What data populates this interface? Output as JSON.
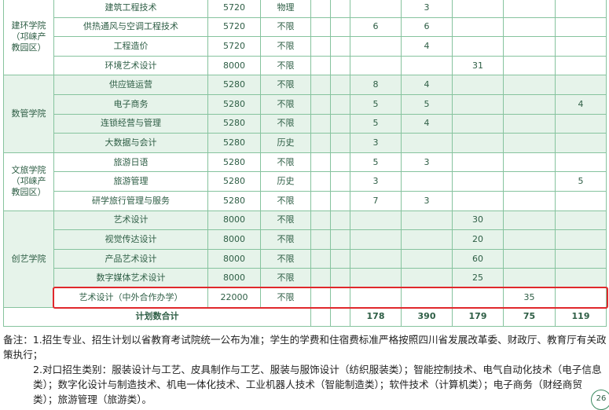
{
  "table": {
    "groups": [
      {
        "college": [
          "建环学院",
          "（邛崃产",
          "教园区）"
        ],
        "rows": [
          {
            "major": "建筑工程技术",
            "fee": 5720,
            "subject": "物理",
            "counts": [
              null,
              3,
              null,
              null,
              null
            ]
          },
          {
            "major": "供热通风与空调工程技术",
            "fee": 5720,
            "subject": "不限",
            "counts": [
              6,
              6,
              null,
              null,
              null
            ]
          },
          {
            "major": "工程造价",
            "fee": 5720,
            "subject": "不限",
            "counts": [
              null,
              4,
              null,
              null,
              null
            ]
          },
          {
            "major": "环境艺术设计",
            "fee": 8000,
            "subject": "不限",
            "counts": [
              null,
              null,
              31,
              null,
              null
            ]
          }
        ]
      },
      {
        "college": [
          "数管学院"
        ],
        "shaded": true,
        "rows": [
          {
            "major": "供应链运营",
            "fee": 5280,
            "subject": "不限",
            "counts": [
              8,
              4,
              null,
              null,
              null
            ]
          },
          {
            "major": "电子商务",
            "fee": 5280,
            "subject": "不限",
            "counts": [
              5,
              5,
              null,
              null,
              4
            ]
          },
          {
            "major": "连锁经营与管理",
            "fee": 5280,
            "subject": "不限",
            "counts": [
              5,
              4,
              null,
              null,
              null
            ]
          },
          {
            "major": "大数据与会计",
            "fee": 5280,
            "subject": "历史",
            "counts": [
              3,
              null,
              null,
              null,
              null
            ]
          }
        ]
      },
      {
        "college": [
          "文旅学院",
          "（邛崃产",
          "教园区）"
        ],
        "rows": [
          {
            "major": "旅游日语",
            "fee": 5280,
            "subject": "不限",
            "counts": [
              5,
              3,
              null,
              null,
              null
            ]
          },
          {
            "major": "旅游管理",
            "fee": 5280,
            "subject": "历史",
            "counts": [
              3,
              null,
              null,
              null,
              5
            ]
          },
          {
            "major": "研学旅行管理与服务",
            "fee": 5280,
            "subject": "不限",
            "counts": [
              7,
              3,
              null,
              null,
              null
            ]
          }
        ]
      },
      {
        "college": [
          "创艺学院"
        ],
        "shaded": true,
        "rows": [
          {
            "major": "艺术设计",
            "fee": 8000,
            "subject": "不限",
            "counts": [
              null,
              null,
              30,
              null,
              null
            ]
          },
          {
            "major": "视觉传达设计",
            "fee": 8000,
            "subject": "不限",
            "counts": [
              null,
              null,
              20,
              null,
              null
            ]
          },
          {
            "major": "产品艺术设计",
            "fee": 8000,
            "subject": "不限",
            "counts": [
              null,
              null,
              60,
              null,
              null
            ]
          },
          {
            "major": "数字媒体艺术设计",
            "fee": 8000,
            "subject": "不限",
            "counts": [
              null,
              null,
              25,
              null,
              null
            ]
          },
          {
            "major": "艺术设计（中外合作办学）",
            "fee": 22000,
            "subject": "不限",
            "counts": [
              null,
              null,
              null,
              35,
              null
            ],
            "highlighted": true
          }
        ]
      }
    ],
    "total": {
      "label": "计划数合计",
      "counts": [
        178,
        390,
        179,
        75,
        119
      ]
    }
  },
  "notes": [
    "备注：1.招生专业、招生计划以省教育考试院统一公布为准；学生的学费和住宿费标准严格按照四川省发展改革委、财政厅、教育厅有关政策执行；",
    "2.对口招生类别：服装设计与工艺、皮具制作与工艺、服装与服饰设计（纺织服装类）；智能控制技术、电气自动化技术（电子信息类）；数字化设计与制造技术、机电一体化技术、工业机器人技术（智能制造类）；软件技术（计算机类）；电子商务（财经商贸类）；旅游管理（旅游类）。"
  ],
  "page_number": "26"
}
